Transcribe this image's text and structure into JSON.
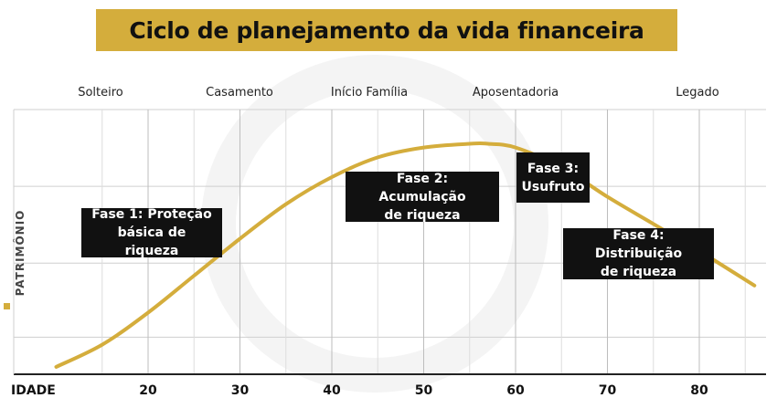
{
  "title": "Ciclo de planejamento da vida financeira",
  "life_stages": [
    "Solteiro",
    "Casamento",
    "Início Família",
    "Aposentadoria",
    "Legado"
  ],
  "phases": [
    {
      "line1": "Fase 1: Proteção",
      "line2": "básica de riqueza"
    },
    {
      "line1": "Fase 2: Acumulação",
      "line2": "de riqueza"
    },
    {
      "line1": "Fase 3:",
      "line2": "Usufruto"
    },
    {
      "line1": "Fase 4: Distribuição",
      "line2": "de riqueza"
    }
  ],
  "colors": {
    "accent": "#d4ad3c",
    "box": "#111111",
    "grid": "#cfcfcf"
  },
  "chart_data": {
    "type": "line",
    "title": "Ciclo de planejamento da vida financeira",
    "xlabel": "IDADE",
    "ylabel": "PATRIMÔNIO",
    "x_ticks": [
      20,
      30,
      40,
      50,
      60,
      70,
      80
    ],
    "xlim": [
      10,
      86
    ],
    "ylim": [
      0,
      100
    ],
    "grid": true,
    "series": [
      {
        "x": [
          10,
          15,
          20,
          25,
          30,
          35,
          40,
          45,
          50,
          55,
          57,
          60,
          65,
          70,
          75,
          80,
          86
        ],
        "y": [
          3,
          12,
          25,
          40,
          55,
          69,
          80,
          88,
          92,
          93.5,
          93.5,
          92,
          84,
          72,
          61,
          50,
          36
        ]
      }
    ]
  }
}
